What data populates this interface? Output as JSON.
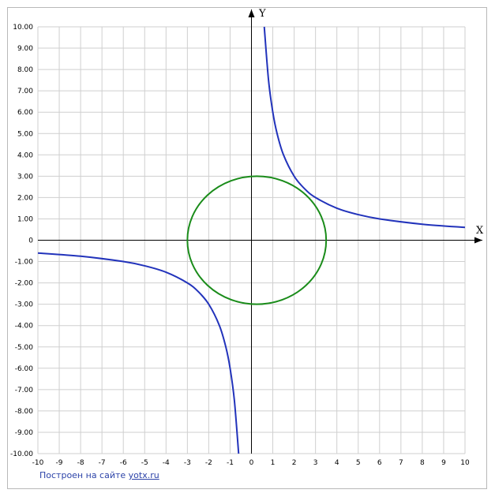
{
  "chart_data": {
    "type": "line",
    "title": "",
    "xlabel": "X",
    "ylabel": "Y",
    "xlim": [
      -10,
      10
    ],
    "ylim": [
      -10,
      10
    ],
    "grid": true,
    "x_ticks": [
      "-10",
      "-9",
      "-8",
      "-7",
      "-6",
      "-5",
      "-4",
      "-3",
      "-2",
      "-1",
      "0",
      "1",
      "2",
      "3",
      "4",
      "5",
      "6",
      "7",
      "8",
      "9",
      "10"
    ],
    "y_ticks": [
      "10.00",
      "9.00",
      "8.00",
      "7.00",
      "6.00",
      "5.00",
      "4.00",
      "3.00",
      "2.00",
      "1.00",
      "0",
      "-1.00",
      "-2.00",
      "-3.00",
      "-4.00",
      "-5.00",
      "-6.00",
      "-7.00",
      "-8.00",
      "-9.00",
      "-10.00"
    ],
    "series": [
      {
        "color": "#2233bb",
        "points": [
          [
            -10,
            -0.6
          ],
          [
            -8,
            -0.75
          ],
          [
            -6,
            -1.0
          ],
          [
            -5,
            -1.2
          ],
          [
            -4,
            -1.5
          ],
          [
            -3,
            -2.0
          ],
          [
            -2.5,
            -2.4
          ],
          [
            -2,
            -3.0
          ],
          [
            -1.5,
            -4.0
          ],
          [
            -1.2,
            -5.0
          ],
          [
            -1,
            -6.0
          ],
          [
            -0.8,
            -7.5
          ],
          [
            -0.6,
            -10
          ]
        ]
      },
      {
        "color": "#2233bb",
        "points": [
          [
            0.6,
            10
          ],
          [
            0.8,
            7.5
          ],
          [
            1,
            6.0
          ],
          [
            1.2,
            5.0
          ],
          [
            1.5,
            4.0
          ],
          [
            2,
            3.0
          ],
          [
            2.5,
            2.4
          ],
          [
            3,
            2.0
          ],
          [
            4,
            1.5
          ],
          [
            5,
            1.2
          ],
          [
            6,
            1.0
          ],
          [
            8,
            0.75
          ],
          [
            10,
            0.6
          ]
        ]
      },
      {
        "color": "#1a8c1a",
        "points": [
          [
            3,
            0
          ],
          [
            2.598,
            1.5
          ],
          [
            1.5,
            2.598
          ],
          [
            0,
            3
          ],
          [
            -1.5,
            2.598
          ],
          [
            -2.598,
            1.5
          ],
          [
            -3,
            0
          ],
          [
            -2.598,
            -1.5
          ],
          [
            -1.5,
            -2.598
          ],
          [
            0,
            -3
          ],
          [
            1.5,
            -2.598
          ],
          [
            2.598,
            -1.5
          ],
          [
            3,
            0
          ]
        ]
      }
    ]
  },
  "credit": {
    "text": "Построен на сайте",
    "link": "yotx.ru"
  }
}
